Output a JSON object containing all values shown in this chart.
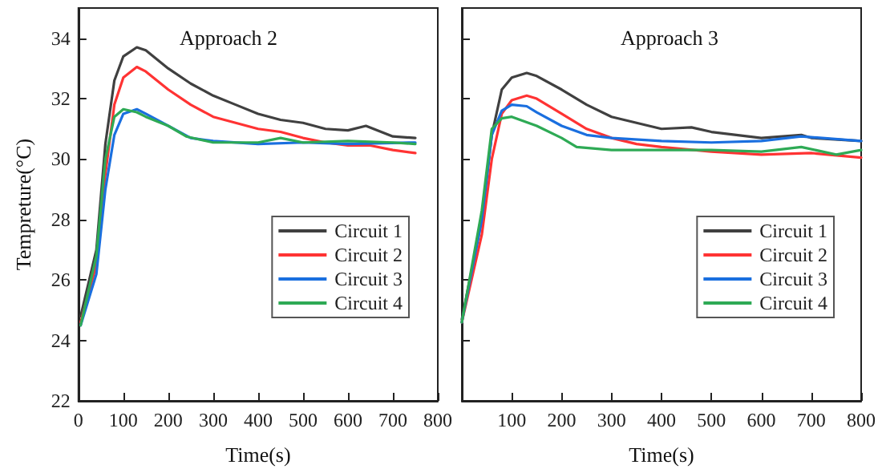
{
  "chart_data": [
    {
      "type": "line",
      "title": "Approach 2",
      "xlabel": "Time(s)",
      "ylabel": "Tempreture(°C)",
      "xlim": [
        0,
        800
      ],
      "xticks": [
        0,
        100,
        200,
        300,
        400,
        500,
        600,
        700,
        800
      ],
      "ylim": [
        22,
        35
      ],
      "yticks": [
        22,
        24,
        26,
        28,
        30,
        32,
        34
      ],
      "grid": false,
      "legend": "right",
      "marker": "none",
      "line_style": "solid",
      "series": [
        {
          "name": "Circuit 1",
          "color": "#404040",
          "x": [
            5,
            40,
            60,
            80,
            100,
            130,
            150,
            200,
            250,
            300,
            350,
            400,
            450,
            500,
            550,
            600,
            640,
            700,
            750
          ],
          "values": [
            24.8,
            27,
            30.5,
            32.6,
            33.4,
            33.7,
            33.6,
            33.0,
            32.5,
            32.1,
            31.8,
            31.5,
            31.3,
            31.2,
            31.0,
            30.95,
            31.1,
            30.75,
            30.7
          ]
        },
        {
          "name": "Circuit 2",
          "color": "#ff3333",
          "x": [
            5,
            40,
            60,
            80,
            100,
            130,
            150,
            200,
            250,
            300,
            350,
            400,
            450,
            500,
            550,
            600,
            650,
            700,
            750
          ],
          "values": [
            24.6,
            26.5,
            29.5,
            31.8,
            32.7,
            33.05,
            32.9,
            32.3,
            31.8,
            31.4,
            31.2,
            31.0,
            30.9,
            30.7,
            30.55,
            30.45,
            30.45,
            30.3,
            30.2
          ]
        },
        {
          "name": "Circuit 3",
          "color": "#1a6fdf",
          "x": [
            5,
            40,
            60,
            80,
            100,
            130,
            150,
            200,
            250,
            300,
            400,
            500,
            600,
            750
          ],
          "values": [
            24.5,
            26.2,
            29,
            30.8,
            31.5,
            31.65,
            31.5,
            31.1,
            30.7,
            30.6,
            30.5,
            30.55,
            30.5,
            30.55
          ]
        },
        {
          "name": "Circuit 4",
          "color": "#2eaa55",
          "x": [
            5,
            40,
            60,
            80,
            100,
            130,
            150,
            200,
            240,
            300,
            400,
            450,
            500,
            600,
            700,
            750
          ],
          "values": [
            24.5,
            26.8,
            30,
            31.4,
            31.65,
            31.55,
            31.4,
            31.1,
            30.75,
            30.55,
            30.55,
            30.7,
            30.55,
            30.6,
            30.55,
            30.5
          ]
        }
      ]
    },
    {
      "type": "line",
      "title": "Approach 3",
      "xlabel": "Time(s)",
      "xlim": [
        0,
        800
      ],
      "xticks": [
        {
          "value": 0,
          "label": null
        },
        100,
        200,
        300,
        400,
        500,
        600,
        700,
        800
      ],
      "ylim": [
        22,
        35
      ],
      "yticks": [
        22,
        24,
        26,
        28,
        30,
        32,
        34
      ],
      "tick_labels": "x",
      "grid": false,
      "legend": "right",
      "marker": "none",
      "line_style": "solid",
      "series": [
        {
          "name": "Circuit 1",
          "color": "#404040",
          "x": [
            0,
            40,
            60,
            80,
            100,
            130,
            150,
            200,
            250,
            300,
            350,
            400,
            460,
            500,
            600,
            680,
            700,
            800
          ],
          "values": [
            24.7,
            28,
            30.8,
            32.3,
            32.7,
            32.85,
            32.75,
            32.3,
            31.8,
            31.4,
            31.2,
            31.0,
            31.05,
            30.9,
            30.7,
            30.8,
            30.7,
            30.6
          ]
        },
        {
          "name": "Circuit 2",
          "color": "#ff3333",
          "x": [
            0,
            40,
            60,
            80,
            100,
            130,
            150,
            200,
            250,
            300,
            350,
            400,
            500,
            600,
            700,
            800
          ],
          "values": [
            24.6,
            27.5,
            30,
            31.5,
            31.95,
            32.1,
            32.0,
            31.5,
            31.0,
            30.7,
            30.5,
            30.4,
            30.25,
            30.15,
            30.2,
            30.05
          ]
        },
        {
          "name": "Circuit 3",
          "color": "#1a6fdf",
          "x": [
            0,
            40,
            60,
            80,
            100,
            130,
            150,
            200,
            250,
            300,
            400,
            500,
            600,
            680,
            800
          ],
          "values": [
            24.6,
            28,
            30.8,
            31.6,
            31.8,
            31.75,
            31.55,
            31.1,
            30.8,
            30.7,
            30.6,
            30.55,
            30.6,
            30.75,
            30.6
          ]
        },
        {
          "name": "Circuit 4",
          "color": "#2eaa55",
          "x": [
            0,
            40,
            60,
            80,
            100,
            150,
            200,
            230,
            300,
            400,
            500,
            600,
            680,
            750,
            800
          ],
          "values": [
            24.6,
            28.3,
            31.0,
            31.35,
            31.4,
            31.1,
            30.7,
            30.4,
            30.3,
            30.3,
            30.3,
            30.25,
            30.4,
            30.15,
            30.3
          ]
        }
      ]
    }
  ]
}
